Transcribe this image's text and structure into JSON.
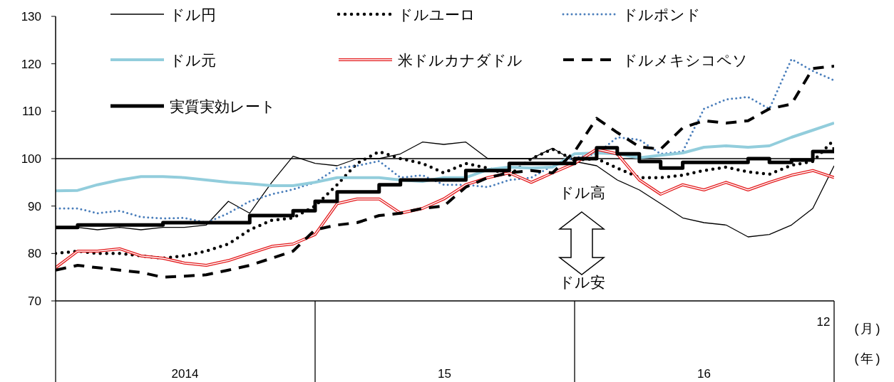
{
  "chart_data": {
    "type": "line",
    "x": [
      "2014-01-01",
      "2014-02-01",
      "2014-03-01",
      "2014-04-01",
      "2014-05-01",
      "2014-06-01",
      "2014-07-01",
      "2014-08-01",
      "2014-09-01",
      "2014-10-01",
      "2014-11-01",
      "2014-12-01",
      "2015-01-01",
      "2015-02-01",
      "2015-03-01",
      "2015-04-01",
      "2015-05-01",
      "2015-06-01",
      "2015-07-01",
      "2015-08-01",
      "2015-09-01",
      "2015-10-01",
      "2015-11-01",
      "2015-12-01",
      "2016-01-01",
      "2016-02-01",
      "2016-03-01",
      "2016-04-01",
      "2016-05-01",
      "2016-06-01",
      "2016-07-01",
      "2016-08-01",
      "2016-09-01",
      "2016-10-01",
      "2016-11-01",
      "2016-12-01",
      "2016-12-31"
    ],
    "series": [
      {
        "name": "ドル円",
        "color": "#000000",
        "line_style": "solid",
        "values": [
          85.5,
          85.5,
          85,
          85.5,
          85,
          85.5,
          85.5,
          86,
          91,
          88.5,
          95,
          100.5,
          99,
          98.5,
          100,
          100,
          101,
          103.5,
          103,
          103.5,
          100,
          100,
          100,
          102.2,
          99.4,
          98.5,
          95.5,
          93.4,
          90.5,
          87.5,
          86.5,
          86,
          83.5,
          84,
          86,
          89.5,
          98.5
        ]
      },
      {
        "name": "ドルユーロ",
        "color": "#000000",
        "line_style": "dotted",
        "values": [
          80,
          80.5,
          80,
          80,
          79.5,
          79,
          79.5,
          80.5,
          82,
          85,
          87,
          87.5,
          90,
          94.5,
          99,
          101.5,
          100,
          99,
          97,
          99,
          98,
          96.5,
          100,
          102,
          99.7,
          100,
          98,
          96,
          96,
          96.5,
          97.5,
          98.2,
          97.2,
          96.7,
          98.6,
          99.4,
          104
        ]
      },
      {
        "name": "ドルポンド",
        "color": "#4a7ebb",
        "line_style": "dotted",
        "values": [
          89.5,
          89.5,
          88.5,
          89,
          87.7,
          87.4,
          87.5,
          86.5,
          88.5,
          91,
          92.5,
          93.5,
          95,
          98,
          98.5,
          99.5,
          96,
          96.5,
          94.5,
          94.5,
          94,
          95.5,
          96,
          98.5,
          100.2,
          101,
          104.5,
          104,
          101,
          101.5,
          110.5,
          112.5,
          113,
          110.5,
          121,
          118.5,
          116.5
        ]
      },
      {
        "name": "ドル元",
        "color": "#92cddc",
        "line_style": "solid",
        "values": [
          93.2,
          93.3,
          94.5,
          95.5,
          96.2,
          96.2,
          96,
          95.5,
          95,
          94.7,
          94.3,
          94.3,
          95,
          96,
          96,
          96,
          95.5,
          95.2,
          96,
          96,
          97.7,
          98.2,
          98,
          98.2,
          101,
          101.2,
          101,
          100.2,
          100.7,
          101.2,
          102.4,
          102.7,
          102.4,
          102.7,
          104.5,
          106,
          107.5
        ]
      },
      {
        "name": "米ドルカナダドル",
        "color": "#e41a1c",
        "line_style": "solid",
        "values": [
          77,
          80.5,
          80.5,
          81,
          79.5,
          79,
          78,
          77.5,
          78.5,
          80,
          81.5,
          82,
          84,
          90.5,
          91.5,
          91.5,
          88.5,
          89.5,
          91.5,
          94.5,
          96,
          97,
          95,
          97,
          99,
          102,
          101,
          95.5,
          92.5,
          94.5,
          93.4,
          95,
          93.4,
          95,
          96.5,
          97.5,
          96
        ]
      },
      {
        "name": "ドルメキシコペソ",
        "color": "#000000",
        "line_style": "dashed",
        "values": [
          76.5,
          77.5,
          77,
          76.5,
          76,
          75,
          75.2,
          75.5,
          76.5,
          77.5,
          79,
          80.5,
          85,
          86,
          86.5,
          88,
          88.5,
          89.5,
          90,
          94,
          96,
          97,
          97.5,
          97,
          101.5,
          108.5,
          105.5,
          102.5,
          102,
          106.5,
          108,
          107.5,
          108,
          110.5,
          111.5,
          119,
          119.5
        ]
      },
      {
        "name": "実質実効レート",
        "color": "#000000",
        "type": "step",
        "line_style": "solid",
        "values": [
          85.5,
          86,
          86,
          86,
          86,
          86.5,
          86.5,
          86.5,
          86.5,
          88,
          88,
          89,
          91,
          93,
          93,
          94.5,
          95.5,
          95.5,
          95.5,
          97.5,
          97.5,
          99,
          99,
          99,
          100,
          102.3,
          101,
          99.4,
          98,
          99.2,
          99.2,
          99.2,
          100,
          99.2,
          99.7,
          101.5,
          102.4
        ]
      }
    ],
    "xlim": [
      "2014-01-01",
      "2016-12-31"
    ],
    "xticks": [
      {
        "value": "2014-01-01",
        "label": null
      },
      {
        "value": "2014-07-02",
        "label": "2014"
      },
      {
        "value": "2015-01-01",
        "label": null
      },
      {
        "value": "2015-07-02",
        "label": "15"
      },
      {
        "value": "2016-01-01",
        "label": null
      },
      {
        "value": "2016-07-01",
        "label": "16"
      },
      {
        "value": "2016-12-31",
        "label": null
      }
    ],
    "ylim": [
      70,
      130
    ],
    "yticks": [
      70,
      80,
      90,
      100,
      110,
      120,
      130
    ],
    "ref_lines": [
      {
        "axis": "y",
        "value": 100,
        "color": "#000000"
      }
    ],
    "annotations": [
      "12",
      "(月)",
      "(年)",
      "ドル高",
      "ドル安"
    ],
    "legend": "top",
    "grid": false
  }
}
